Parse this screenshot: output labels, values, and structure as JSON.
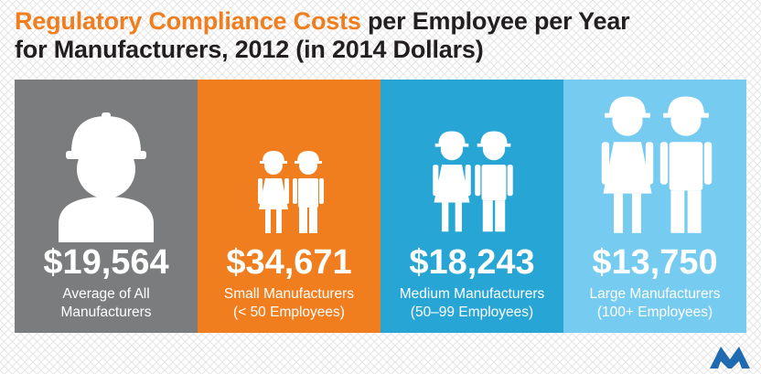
{
  "title": {
    "highlight": "Regulatory Compliance Costs",
    "line1_rest": " per Employee per Year",
    "line2": "for Manufacturers, 2012 (in 2014 Dollars)"
  },
  "colors": {
    "accent": "#f07d1e",
    "gray": "#7b7c7e",
    "orange": "#f07d1e",
    "blue": "#27a6d6",
    "light_blue": "#76ccf0",
    "logo": "#1f6ab1"
  },
  "panels": [
    {
      "value": "$19,564",
      "label_line1": "Average of All",
      "label_line2": "Manufacturers",
      "icon": "worker-icon"
    },
    {
      "value": "$34,671",
      "label_line1": "Small Manufacturers",
      "label_line2": "(< 50 Employees)",
      "icon": "worker-pair-icon"
    },
    {
      "value": "$18,243",
      "label_line1": "Medium Manufacturers",
      "label_line2": "(50–99 Employees)",
      "icon": "worker-pair-icon"
    },
    {
      "value": "$13,750",
      "label_line1": "Large Manufacturers",
      "label_line2": "(100+ Employees)",
      "icon": "worker-pair-icon"
    }
  ],
  "logo": {
    "icon": "m-logo-icon"
  }
}
